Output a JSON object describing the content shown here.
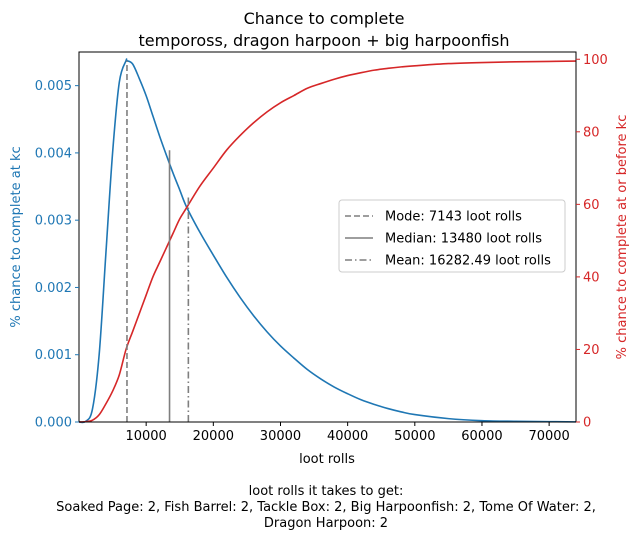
{
  "chart_data": {
    "type": "line",
    "title": "Chance to complete",
    "subtitle": "tempoross, dragon harpoon + big harpoonfish",
    "xlabel": "loot rolls",
    "ylabel_left": "% chance to complete at kc",
    "ylabel_right": "% chance to complete at or before kc",
    "xlim": [
      0,
      74000
    ],
    "ylim_left": [
      0,
      0.0055
    ],
    "ylim_right": [
      0,
      102
    ],
    "x_ticks": [
      10000,
      20000,
      30000,
      40000,
      50000,
      60000,
      70000
    ],
    "x_tick_labels": [
      "10000",
      "20000",
      "30000",
      "40000",
      "50000",
      "60000",
      "70000"
    ],
    "y_left_ticks": [
      0,
      0.001,
      0.002,
      0.003,
      0.004,
      0.005
    ],
    "y_left_tick_labels": [
      "0.000",
      "0.001",
      "0.002",
      "0.003",
      "0.004",
      "0.005"
    ],
    "y_right_ticks": [
      0,
      20,
      40,
      60,
      80,
      100
    ],
    "y_right_tick_labels": [
      "0",
      "20",
      "40",
      "60",
      "80",
      "100"
    ],
    "colors": {
      "left": "#1f77b4",
      "right": "#d62728",
      "markers": "#7f7f7f"
    },
    "series": [
      {
        "axis": "left",
        "x": [
          0,
          1000,
          2000,
          3000,
          4000,
          5000,
          6000,
          7000,
          7143,
          8000,
          9000,
          10000,
          11000,
          12000,
          13000,
          14000,
          15000,
          16000,
          18000,
          20000,
          22000,
          24000,
          26000,
          28000,
          30000,
          32000,
          34000,
          36000,
          38000,
          40000,
          42000,
          44000,
          46000,
          48000,
          50000,
          55000,
          60000,
          65000,
          70000,
          74000
        ],
        "values": [
          0,
          1e-05,
          0.00019,
          0.001,
          0.0025,
          0.004,
          0.00505,
          0.00537,
          0.00537,
          0.00532,
          0.0051,
          0.00485,
          0.00455,
          0.00425,
          0.00397,
          0.0037,
          0.00345,
          0.0032,
          0.00282,
          0.00248,
          0.00215,
          0.00185,
          0.00158,
          0.00134,
          0.00113,
          0.00095,
          0.00078,
          0.00064,
          0.00052,
          0.00042,
          0.00033,
          0.00026,
          0.0002,
          0.00015,
          0.00011,
          5e-05,
          2e-05,
          1e-05,
          5e-06,
          2e-06
        ]
      },
      {
        "axis": "right",
        "x": [
          0,
          1000,
          2000,
          3000,
          4000,
          5000,
          6000,
          7000,
          8000,
          9000,
          10000,
          11000,
          12000,
          13000,
          14000,
          15000,
          16000,
          18000,
          20000,
          22000,
          24000,
          26000,
          28000,
          30000,
          32000,
          34000,
          36000,
          38000,
          40000,
          42000,
          44000,
          46000,
          48000,
          50000,
          55000,
          60000,
          65000,
          70000,
          74000
        ],
        "values": [
          0,
          0.1,
          0.5,
          2,
          5,
          8.5,
          13,
          20,
          25,
          30,
          35,
          40,
          44,
          48,
          52,
          56,
          59,
          65,
          70,
          75,
          79,
          82.5,
          85.5,
          88,
          90,
          92,
          93.3,
          94.5,
          95.5,
          96.3,
          97,
          97.5,
          97.9,
          98.2,
          98.8,
          99.1,
          99.3,
          99.4,
          99.5
        ]
      }
    ],
    "markers": [
      {
        "label": "Mode: 7143 loot rolls",
        "x": 7143,
        "top": 0.00537,
        "style": "dashed"
      },
      {
        "label": "Median: 13480 loot rolls",
        "x": 13480,
        "top": 0.00404,
        "style": "solid"
      },
      {
        "label": "Mean: 16282.49 loot rolls",
        "x": 16282.49,
        "top": 0.00337,
        "style": "dashdot"
      }
    ],
    "legend_placement": "center-right"
  },
  "footer": {
    "line1": "loot rolls it takes to get:",
    "line2": "Soaked Page: 2,  Fish Barrel: 2,  Tackle Box: 2,  Big Harpoonfish: 2,  Tome Of Water: 2,",
    "line3": "Dragon Harpoon: 2"
  }
}
